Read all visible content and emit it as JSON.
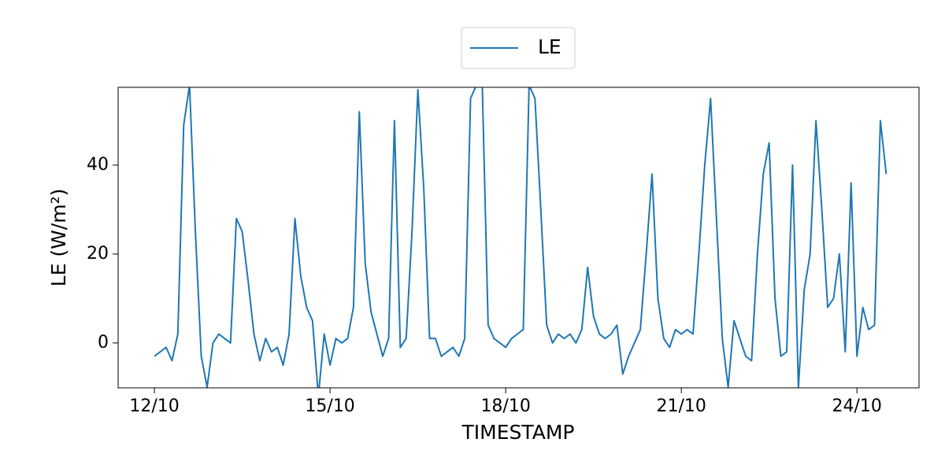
{
  "chart_data": {
    "type": "line",
    "xlabel": "TIMESTAMP",
    "ylabel": "LE (W/m²)",
    "x": [
      12.0,
      12.1,
      12.2,
      12.3,
      12.4,
      12.5,
      12.6,
      12.7,
      12.8,
      12.9,
      13.0,
      13.1,
      13.2,
      13.3,
      13.4,
      13.5,
      13.6,
      13.7,
      13.8,
      13.9,
      14.0,
      14.1,
      14.2,
      14.3,
      14.4,
      14.5,
      14.6,
      14.7,
      14.8,
      14.9,
      15.0,
      15.1,
      15.2,
      15.3,
      15.4,
      15.5,
      15.6,
      15.7,
      15.8,
      15.9,
      16.0,
      16.1,
      16.2,
      16.3,
      16.4,
      16.5,
      16.6,
      16.7,
      16.8,
      16.9,
      17.0,
      17.1,
      17.2,
      17.3,
      17.4,
      17.5,
      17.6,
      17.7,
      17.8,
      17.9,
      18.0,
      18.1,
      18.2,
      18.3,
      18.4,
      18.5,
      18.6,
      18.7,
      18.8,
      18.9,
      19.0,
      19.1,
      19.2,
      19.3,
      19.4,
      19.5,
      19.6,
      19.7,
      19.8,
      19.9,
      20.0,
      20.1,
      20.2,
      20.3,
      20.4,
      20.5,
      20.6,
      20.7,
      20.8,
      20.9,
      21.0,
      21.1,
      21.2,
      21.3,
      21.4,
      21.5,
      21.6,
      21.7,
      21.8,
      21.9,
      22.0,
      22.1,
      22.2,
      22.3,
      22.4,
      22.5,
      22.6,
      22.7,
      22.8,
      22.9,
      23.0,
      23.1,
      23.2,
      23.3,
      23.4,
      23.5,
      23.6,
      23.7,
      23.8,
      23.9,
      24.0,
      24.1,
      24.2,
      24.3,
      24.4,
      24.5
    ],
    "series": [
      {
        "name": "LE",
        "color": "#1f77b4",
        "values": [
          -3,
          -2,
          -1,
          -4,
          2,
          49,
          58,
          25,
          -3,
          -10,
          0,
          2,
          1,
          0,
          28,
          25,
          14,
          2,
          -4,
          1,
          -2,
          -1,
          -5,
          2,
          28,
          15,
          8,
          5,
          -12,
          2,
          -5,
          1,
          0,
          1,
          8,
          52,
          18,
          7,
          2,
          -3,
          1,
          50,
          -1,
          1,
          25,
          57,
          35,
          1,
          1,
          -3,
          -2,
          -1,
          -3,
          1,
          55,
          58,
          58,
          4,
          1,
          0,
          -1,
          1,
          2,
          3,
          58,
          55,
          30,
          4,
          0,
          2,
          1,
          2,
          0,
          3,
          17,
          6,
          2,
          1,
          2,
          4,
          -7,
          -3,
          0,
          3,
          20,
          38,
          10,
          1,
          -1,
          3,
          2,
          3,
          2,
          20,
          40,
          55,
          28,
          1,
          -10,
          5,
          1,
          -3,
          -4,
          20,
          38,
          45,
          10,
          -3,
          -2,
          40,
          -10,
          12,
          20,
          50,
          30,
          8,
          10,
          20,
          -2,
          36,
          -3,
          8,
          3,
          4,
          50,
          38
        ]
      }
    ],
    "xlim": [
      11.38,
      25.06
    ],
    "xticks": [
      {
        "value": 12,
        "label": "12/10"
      },
      {
        "value": 15,
        "label": "15/10"
      },
      {
        "value": 18,
        "label": "18/10"
      },
      {
        "value": 21,
        "label": "21/10"
      },
      {
        "value": 24,
        "label": "24/10"
      }
    ],
    "ylim": [
      -10.1,
      57.5
    ],
    "yticks": [
      0,
      20,
      40
    ],
    "legend": "upper center"
  }
}
